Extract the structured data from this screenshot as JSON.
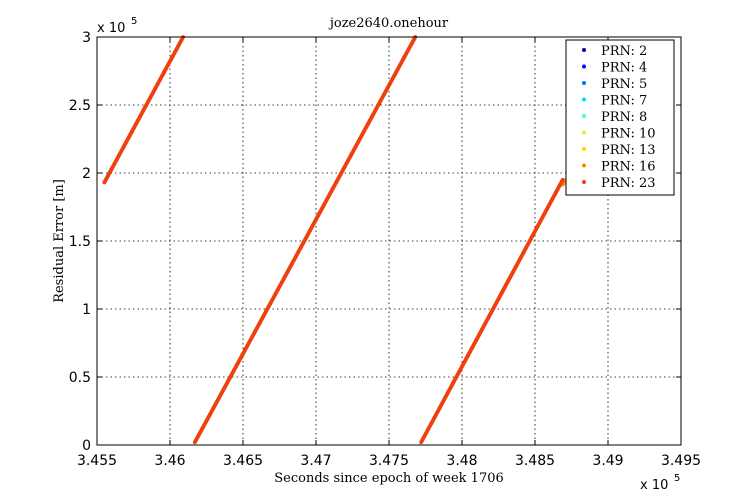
{
  "chart_data": {
    "type": "scatter",
    "title": "joze2640.onehour",
    "xlabel": "Seconds since epoch of week 1706",
    "ylabel": "Residual Error [m]",
    "x_exponent_label": "x 10",
    "x_exponent_power": "5",
    "y_exponent_label": "x 10",
    "y_exponent_power": "5",
    "xlim": [
      3.455,
      3.495
    ],
    "ylim": [
      0,
      3
    ],
    "xticks": [
      3.455,
      3.46,
      3.465,
      3.47,
      3.475,
      3.48,
      3.485,
      3.49,
      3.495
    ],
    "xtick_labels": [
      "3.455",
      "3.46",
      "3.465",
      "3.47",
      "3.475",
      "3.48",
      "3.485",
      "3.49",
      "3.495"
    ],
    "yticks": [
      0,
      0.5,
      1,
      1.5,
      2,
      2.5,
      3
    ],
    "ytick_labels": [
      "0",
      "0.5",
      "1",
      "1.5",
      "2",
      "2.5",
      "3"
    ],
    "grid": true,
    "legend_position": "top-right",
    "marker_spacing_x": 3e-05,
    "series": [
      {
        "name": "PRN: 2",
        "color": "#00008f",
        "segments": []
      },
      {
        "name": "PRN: 4",
        "color": "#0000ff",
        "segments": []
      },
      {
        "name": "PRN: 5",
        "color": "#0070ff",
        "segments": []
      },
      {
        "name": "PRN: 7",
        "color": "#00e0ff",
        "segments": []
      },
      {
        "name": "PRN: 8",
        "color": "#50ffaf",
        "segments": []
      },
      {
        "name": "PRN: 10",
        "color": "#bfff40",
        "segments": []
      },
      {
        "name": "PRN: 13",
        "color": "#ffdf00",
        "segments": []
      },
      {
        "name": "PRN: 16",
        "color": "#ff9000",
        "segments": [
          {
            "x_start": 3.4869,
            "y_start": 1.915,
            "x_end": 3.4872,
            "y_end": 1.955
          }
        ]
      },
      {
        "name": "PRN: 23",
        "color": "#f04010",
        "segments": [
          {
            "x_start": 3.4555,
            "y_start": 1.93,
            "x_end": 3.4609,
            "y_end": 3.0
          },
          {
            "x_start": 3.4617,
            "y_start": 0.02,
            "x_end": 3.4768,
            "y_end": 3.0
          },
          {
            "x_start": 3.4772,
            "y_start": 0.02,
            "x_end": 3.4869,
            "y_end": 1.95
          }
        ]
      }
    ]
  }
}
